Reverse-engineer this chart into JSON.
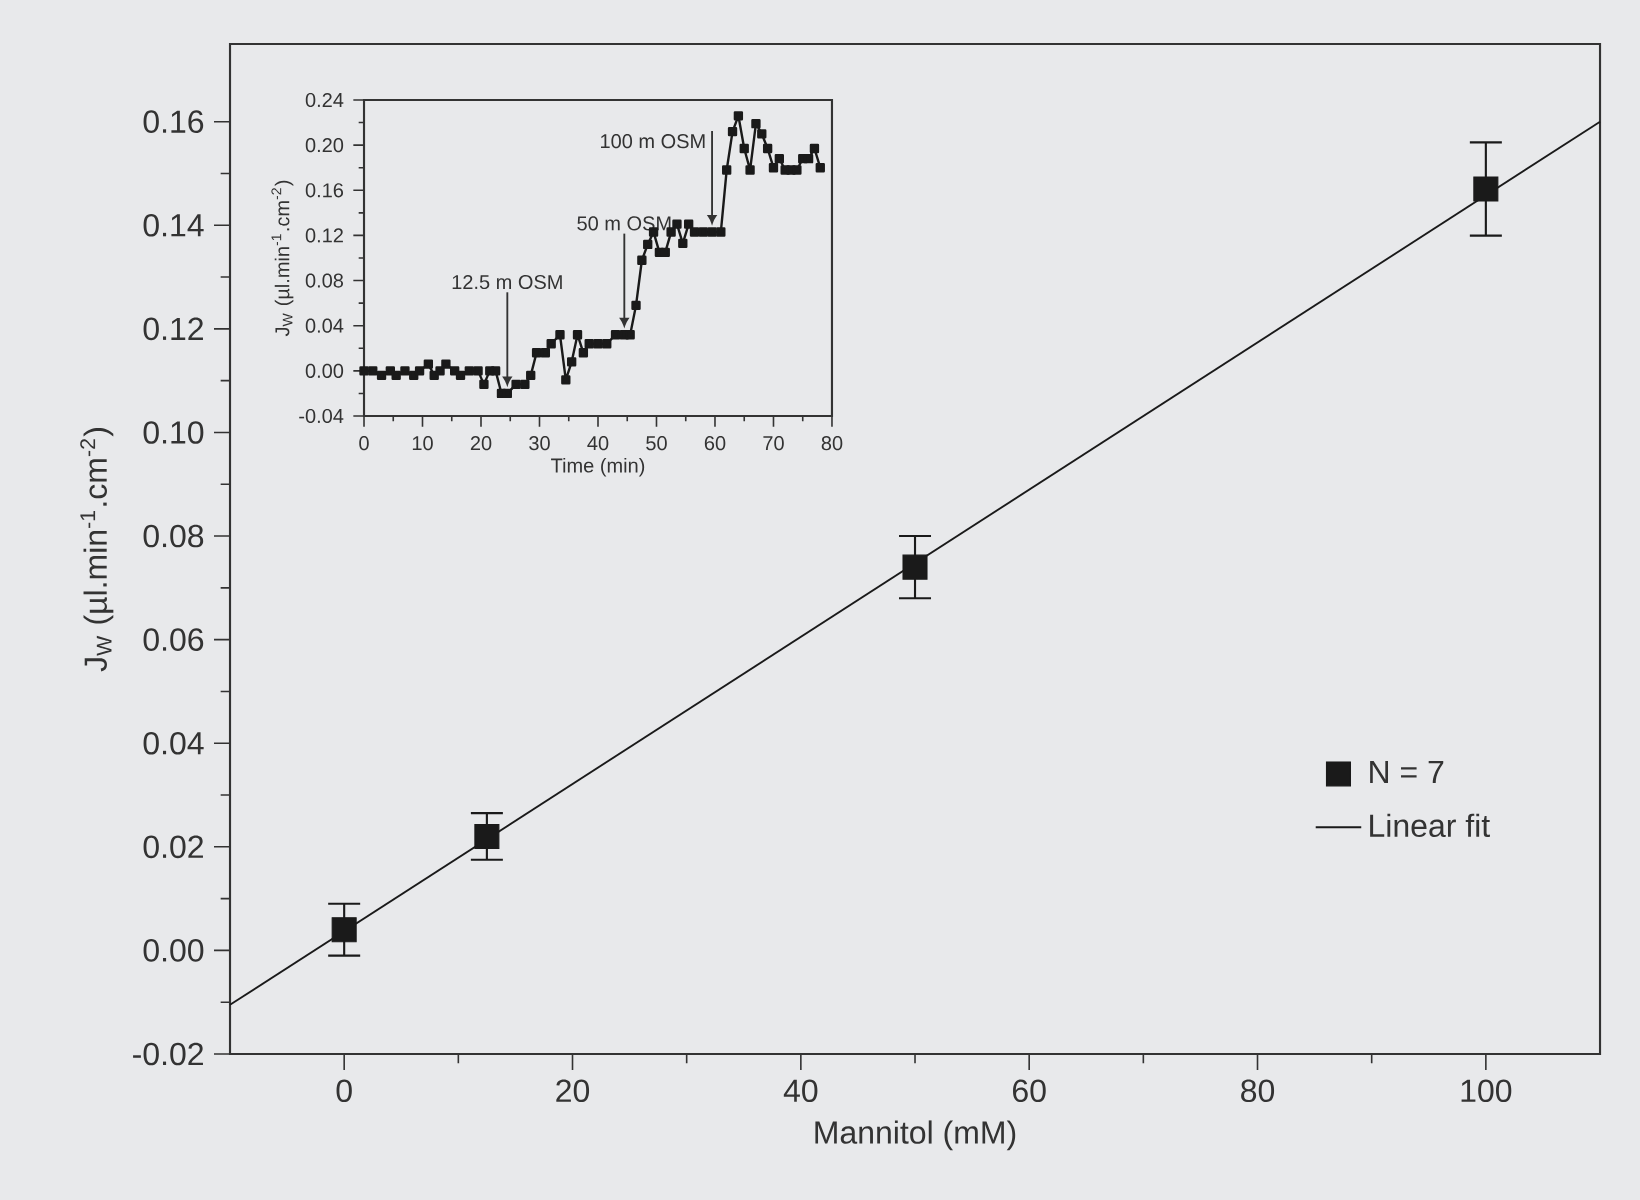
{
  "chart_data": [
    {
      "type": "scatter",
      "xlabel": "Mannitol (mM)",
      "ylabel": "J$_{W}$ (µl.min$^{-1}$.cm$^{-2}$)",
      "xlim": [
        -10,
        110
      ],
      "ylim": [
        -0.02,
        0.175
      ],
      "xticks": [
        0,
        20,
        40,
        60,
        80,
        100
      ],
      "yticks": [
        {
          "value": -0.02,
          "label": "-0.02"
        },
        {
          "value": 0,
          "label": "0.00"
        },
        {
          "value": 0.02,
          "label": "0.02"
        },
        {
          "value": 0.04,
          "label": "0.04"
        },
        {
          "value": 0.06,
          "label": "0.06"
        },
        {
          "value": 0.08,
          "label": "0.08"
        },
        {
          "value": 0.1,
          "label": "0.10"
        },
        {
          "value": 0.12,
          "label": "0.12"
        },
        {
          "value": 0.14,
          "label": "0.14"
        },
        {
          "value": 0.16,
          "label": "0.16"
        }
      ],
      "legend": "bottom right",
      "grid": false,
      "series": [
        {
          "name": "N = 7",
          "type": "scatter",
          "marker": "square",
          "color": "#1a1a1a",
          "x": [
            0,
            12.5,
            50,
            100
          ],
          "values": [
            0.004,
            0.022,
            0.074,
            0.147
          ],
          "errors": [
            0.005,
            0.0045,
            0.006,
            0.009
          ]
        },
        {
          "name": "Linear fit",
          "type": "line",
          "marker": "none",
          "line_style": "solid",
          "color": "#1a1a1a",
          "x": [
            -10,
            110
          ],
          "values": [
            -0.0105,
            0.16
          ]
        }
      ]
    },
    {
      "type": "line",
      "xlabel": "Time (min)",
      "ylabel": "J$_{W}$ (µl.min$^{-1}$.cm$^{-2}$)",
      "xlim": [
        0,
        80
      ],
      "ylim": [
        -0.04,
        0.24
      ],
      "xticks": [
        0,
        10,
        20,
        30,
        40,
        50,
        60,
        70,
        80
      ],
      "yticks": [
        {
          "value": -0.04,
          "label": "-0.04"
        },
        {
          "value": 0,
          "label": "0.00"
        },
        {
          "value": 0.04,
          "label": "0.04"
        },
        {
          "value": 0.08,
          "label": "0.08"
        },
        {
          "value": 0.12,
          "label": "0.12"
        },
        {
          "value": 0.16,
          "label": "0.16"
        },
        {
          "value": 0.2,
          "label": "0.20"
        },
        {
          "value": 0.24,
          "label": "0.24"
        }
      ],
      "marker": "square",
      "line_style": "solid",
      "grid": false,
      "legend": false,
      "annotations": [
        {
          "text": "12.5 m OSM",
          "x": 24.5,
          "y": -0.02
        },
        {
          "text": "50 m OSM",
          "x": 44.5,
          "y": 0.032
        },
        {
          "text": "100 m OSM",
          "x": 59.5,
          "y": 0.123
        }
      ],
      "series": [
        {
          "color": "#1a1a1a",
          "x": [
            0,
            1.5,
            3,
            4.5,
            5.5,
            7,
            8.5,
            9.5,
            11,
            12,
            13,
            14,
            15.5,
            16.5,
            18,
            19.5,
            20.5,
            21.5,
            22.5,
            23.5,
            24.5,
            26,
            27.5,
            28.5,
            29.5,
            31,
            32,
            33.5,
            34.5,
            35.5,
            36.5,
            37.5,
            38.5,
            40,
            41.5,
            43,
            44.5,
            45.5,
            46.5,
            47.5,
            48.5,
            49.5,
            50.5,
            51.5,
            52.5,
            53.5,
            54.5,
            55.5,
            56.5,
            58,
            59.5,
            61,
            62,
            63,
            64,
            65,
            66,
            67,
            68,
            69,
            70,
            71,
            72,
            73,
            74,
            75,
            76,
            77,
            78
          ],
          "values": [
            0,
            0,
            -0.004,
            0,
            -0.004,
            0,
            -0.004,
            0,
            0.006,
            -0.004,
            0,
            0.006,
            0,
            -0.004,
            0,
            0,
            -0.012,
            0,
            0,
            -0.02,
            -0.02,
            -0.012,
            -0.012,
            -0.004,
            0.016,
            0.016,
            0.024,
            0.032,
            -0.008,
            0.008,
            0.032,
            0.016,
            0.024,
            0.024,
            0.024,
            0.032,
            0.032,
            0.032,
            0.058,
            0.098,
            0.112,
            0.123,
            0.105,
            0.105,
            0.123,
            0.13,
            0.113,
            0.13,
            0.123,
            0.123,
            0.123,
            0.123,
            0.178,
            0.212,
            0.226,
            0.197,
            0.178,
            0.219,
            0.21,
            0.197,
            0.18,
            0.188,
            0.178,
            0.178,
            0.178,
            0.188,
            0.188,
            0.197,
            0.18
          ]
        }
      ]
    }
  ]
}
